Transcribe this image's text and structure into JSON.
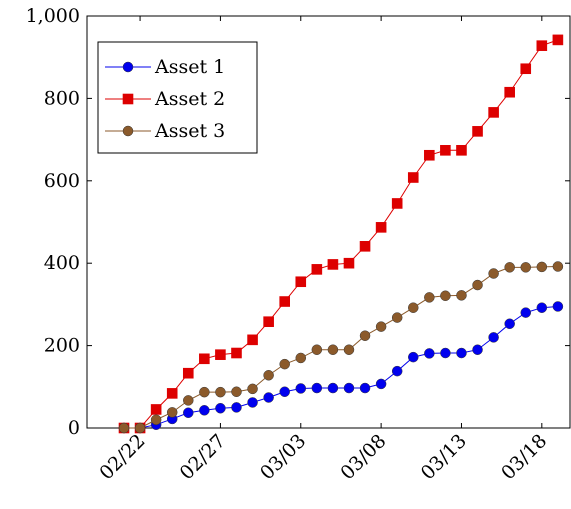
{
  "chart_data": {
    "type": "line",
    "x": [
      "02/21",
      "02/22",
      "02/23",
      "02/24",
      "02/25",
      "02/26",
      "02/27",
      "02/28",
      "02/29",
      "03/01",
      "03/02",
      "03/03",
      "03/04",
      "03/05",
      "03/06",
      "03/07",
      "03/08",
      "03/09",
      "03/10",
      "03/11",
      "03/12",
      "03/13",
      "03/14",
      "03/15",
      "03/16",
      "03/17",
      "03/18",
      "03/19"
    ],
    "x_ticks": [
      "02/22",
      "02/27",
      "03/03",
      "03/08",
      "03/13",
      "03/18"
    ],
    "ylim": [
      0,
      1000
    ],
    "y_ticks": [
      0,
      200,
      400,
      600,
      800,
      1000
    ],
    "y_tick_labels": [
      "0",
      "200",
      "400",
      "600",
      "800",
      "1,000"
    ],
    "grid": false,
    "legend_position": "top-left",
    "series": [
      {
        "name": "Asset 1",
        "color": "#0000ee",
        "marker": "circle",
        "values": [
          0,
          0,
          8,
          22,
          37,
          43,
          48,
          50,
          62,
          74,
          88,
          96,
          97,
          97,
          97,
          97,
          107,
          138,
          172,
          181,
          182,
          182,
          190,
          220,
          253,
          280,
          292,
          295
        ]
      },
      {
        "name": "Asset 2",
        "color": "#dd0000",
        "marker": "square",
        "values": [
          0,
          0,
          45,
          84,
          133,
          168,
          178,
          182,
          214,
          258,
          307,
          355,
          385,
          397,
          400,
          441,
          487,
          545,
          608,
          662,
          674,
          674,
          720,
          766,
          815,
          872,
          928,
          942
        ]
      },
      {
        "name": "Asset 3",
        "color": "#8b5a2b",
        "marker": "circle",
        "values": [
          0,
          0,
          20,
          38,
          67,
          87,
          87,
          88,
          95,
          128,
          155,
          170,
          190,
          190,
          190,
          224,
          246,
          268,
          292,
          317,
          321,
          322,
          347,
          375,
          390,
          390,
          391,
          392
        ]
      }
    ]
  }
}
